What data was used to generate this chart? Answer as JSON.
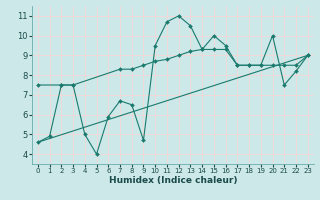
{
  "xlabel": "Humidex (Indice chaleur)",
  "bg_color": "#cce8e8",
  "grid_color": "#f0d8d8",
  "line_color": "#1a7a6e",
  "xlim": [
    -0.5,
    23.5
  ],
  "ylim": [
    3.5,
    11.5
  ],
  "xticks": [
    0,
    1,
    2,
    3,
    4,
    5,
    6,
    7,
    8,
    9,
    10,
    11,
    12,
    13,
    14,
    15,
    16,
    17,
    18,
    19,
    20,
    21,
    22,
    23
  ],
  "yticks": [
    4,
    5,
    6,
    7,
    8,
    9,
    10,
    11
  ],
  "lines": [
    {
      "x": [
        0,
        1,
        2,
        3,
        4,
        5,
        6,
        7,
        8,
        9,
        10,
        11,
        12,
        13,
        14,
        15,
        16,
        17,
        18,
        19,
        20,
        21,
        22,
        23
      ],
      "y": [
        4.6,
        4.9,
        7.5,
        7.5,
        5.0,
        4.0,
        5.9,
        6.7,
        6.5,
        4.7,
        9.5,
        10.7,
        11.0,
        10.5,
        9.3,
        10.0,
        9.5,
        8.5,
        8.5,
        8.5,
        10.0,
        7.5,
        8.2,
        9.0
      ],
      "markers": true
    },
    {
      "x": [
        0,
        2,
        3,
        7,
        8,
        9,
        10,
        11,
        12,
        13,
        14,
        15,
        16,
        17,
        18,
        19,
        20,
        21,
        22,
        23
      ],
      "y": [
        7.5,
        7.5,
        7.5,
        8.3,
        8.3,
        8.5,
        8.7,
        8.8,
        9.0,
        9.2,
        9.3,
        9.3,
        9.3,
        8.5,
        8.5,
        8.5,
        8.5,
        8.5,
        8.5,
        9.0
      ],
      "markers": true
    },
    {
      "x": [
        0,
        23
      ],
      "y": [
        4.6,
        9.0
      ],
      "markers": false
    }
  ]
}
